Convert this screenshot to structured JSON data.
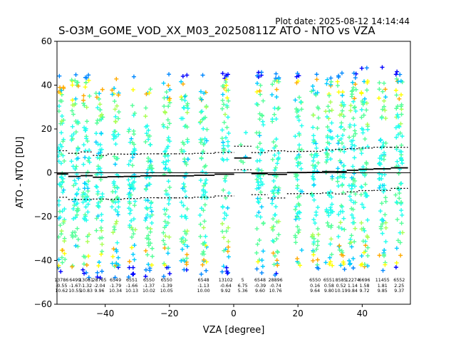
{
  "header": {
    "plot_date": "Plot date: 2025-08-12 14:14:44",
    "title": "S-O3M_GOME_VOD_XX_M03_20250811Z ATO - NTO vs VZA"
  },
  "chart_data": {
    "type": "scatter",
    "title": "S-O3M_GOME_VOD_XX_M03_20250811Z ATO - NTO vs VZA",
    "xlabel": "VZA [degree]",
    "ylabel": "ATO - NTO [DU]",
    "xlim": [
      -55,
      55
    ],
    "ylim": [
      -60,
      60
    ],
    "xticks": [
      -40,
      -20,
      0,
      20,
      40
    ],
    "yticks": [
      -60,
      -40,
      -20,
      0,
      20,
      40,
      60
    ],
    "grid": false,
    "marker": "+",
    "colormap": [
      "#0000ff",
      "#0088ff",
      "#00ccff",
      "#22ffee",
      "#55ff99",
      "#aaff55",
      "#ffff00",
      "#ffaa00"
    ],
    "mean_color": "#000000",
    "bins": [
      {
        "vza": -53.6,
        "count": "13786",
        "mean": "-0.55",
        "std": "10.62",
        "mean_value": -0.55,
        "std_value": 10.62
      },
      {
        "vza": -49.4,
        "count": "6499",
        "mean": "-1.67",
        "std": "10.55",
        "mean_value": -1.67,
        "std_value": 10.55
      },
      {
        "vza": -45.9,
        "count": "13081",
        "mean": "-1.32",
        "std": "10.83",
        "mean_value": -1.32,
        "std_value": 10.83
      },
      {
        "vza": -41.8,
        "count": "28765",
        "mean": "-2.04",
        "std": "9.96",
        "mean_value": -2.04,
        "std_value": 9.96
      },
      {
        "vza": -36.8,
        "count": "6549",
        "mean": "-1.79",
        "std": "10.34",
        "mean_value": -1.79,
        "std_value": 10.34
      },
      {
        "vza": -31.7,
        "count": "6551",
        "mean": "-1.66",
        "std": "10.13",
        "mean_value": -1.66,
        "std_value": 10.13
      },
      {
        "vza": -26.4,
        "count": "6550",
        "mean": "-1.37",
        "std": "10.02",
        "mean_value": -1.37,
        "std_value": 10.02
      },
      {
        "vza": -20.9,
        "count": "6550",
        "mean": "-1.39",
        "std": "10.05",
        "mean_value": -1.39,
        "std_value": 10.05
      },
      {
        "vza": -15.3,
        "count": "",
        "mean": "",
        "std": "",
        "mean_value": -1.39,
        "std_value": 10.05
      },
      {
        "vza": -9.4,
        "count": "6548",
        "mean": "-1.13",
        "std": "10.00",
        "mean_value": -1.13,
        "std_value": 10.0
      },
      {
        "vza": -2.5,
        "count": "13102",
        "mean": "-0.64",
        "std": "9.92",
        "mean_value": -0.64,
        "std_value": 9.92
      },
      {
        "vza": 2.8,
        "count": "5",
        "mean": "6.75",
        "std": "5.36",
        "mean_value": 6.75,
        "std_value": 5.36
      },
      {
        "vza": 8.2,
        "count": "6548",
        "mean": "-0.39",
        "std": "9.60",
        "mean_value": -0.39,
        "std_value": 9.6
      },
      {
        "vza": 13.0,
        "count": "28896",
        "mean": "-0.74",
        "std": "10.76",
        "mean_value": -0.74,
        "std_value": 10.76
      },
      {
        "vza": 20.2,
        "count": "",
        "mean": "",
        "std": "",
        "mean_value": 0.1,
        "std_value": 9.64
      },
      {
        "vza": 25.3,
        "count": "6550",
        "mean": "0.16",
        "std": "9.64",
        "mean_value": 0.16,
        "std_value": 9.64
      },
      {
        "vza": 29.7,
        "count": "6551",
        "mean": "0.58",
        "std": "9.80",
        "mean_value": 0.58,
        "std_value": 9.8
      },
      {
        "vza": 33.4,
        "count": "8585",
        "mean": "0.52",
        "std": "10.19",
        "mean_value": 0.52,
        "std_value": 10.19
      },
      {
        "vza": 37.0,
        "count": "12274",
        "mean": "1.14",
        "std": "9.84",
        "mean_value": 1.14,
        "std_value": 9.84
      },
      {
        "vza": 40.7,
        "count": "6696",
        "mean": "1.58",
        "std": "9.72",
        "mean_value": 1.58,
        "std_value": 9.72
      },
      {
        "vza": 46.3,
        "count": "11455",
        "mean": "1.81",
        "std": "9.85",
        "mean_value": 1.81,
        "std_value": 9.85
      },
      {
        "vza": 51.5,
        "count": "6552",
        "mean": "2.25",
        "std": "9.37",
        "mean_value": 2.25,
        "std_value": 9.37
      }
    ]
  }
}
